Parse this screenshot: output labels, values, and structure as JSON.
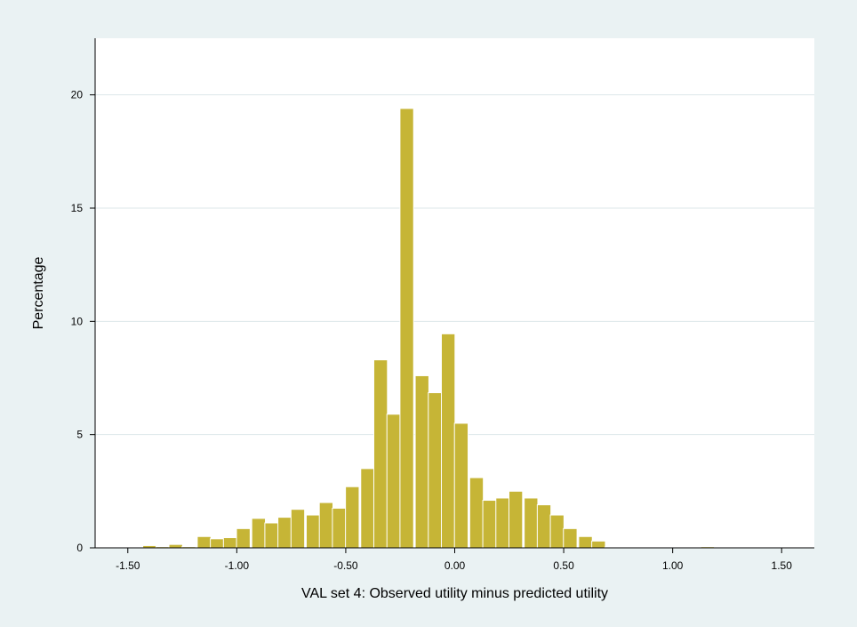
{
  "chart_data": {
    "type": "bar",
    "title": "",
    "xlabel": "VAL set 4: Observed utility minus predicted utility",
    "ylabel": "Percentage",
    "xlim": [
      -1.65,
      1.65
    ],
    "ylim": [
      0,
      22.5
    ],
    "bin_width": 0.0625,
    "x_ticks": [
      {
        "value": -1.5,
        "label": "-1.50"
      },
      {
        "value": -1.0,
        "label": "-1.00"
      },
      {
        "value": -0.5,
        "label": "-0.50"
      },
      {
        "value": 0.0,
        "label": "0.00"
      },
      {
        "value": 0.5,
        "label": "0.50"
      },
      {
        "value": 1.0,
        "label": "1.00"
      },
      {
        "value": 1.5,
        "label": "1.50"
      }
    ],
    "y_ticks": [
      {
        "value": 0,
        "label": "0"
      },
      {
        "value": 5,
        "label": "5"
      },
      {
        "value": 10,
        "label": "10"
      },
      {
        "value": 15,
        "label": "15"
      },
      {
        "value": 20,
        "label": "20"
      }
    ],
    "grid": true,
    "colors": {
      "bar": "#c6b536",
      "bar_edge": "#ffffff",
      "plot_background": "#ffffff",
      "outer_background": "#eaf2f3",
      "grid": "#dde7ea",
      "axis": "#000000"
    },
    "bins": [
      {
        "x": -1.4,
        "value": 0.1
      },
      {
        "x": -1.34,
        "value": 0.05
      },
      {
        "x": -1.28,
        "value": 0.15
      },
      {
        "x": -1.22,
        "value": 0.05
      },
      {
        "x": -1.15,
        "value": 0.5
      },
      {
        "x": -1.09,
        "value": 0.4
      },
      {
        "x": -1.03,
        "value": 0.45
      },
      {
        "x": -0.97,
        "value": 0.85
      },
      {
        "x": -0.9,
        "value": 1.3
      },
      {
        "x": -0.84,
        "value": 1.1
      },
      {
        "x": -0.78,
        "value": 1.35
      },
      {
        "x": -0.72,
        "value": 1.7
      },
      {
        "x": -0.65,
        "value": 1.45
      },
      {
        "x": -0.59,
        "value": 2.0
      },
      {
        "x": -0.53,
        "value": 1.75
      },
      {
        "x": -0.47,
        "value": 2.7
      },
      {
        "x": -0.4,
        "value": 3.5
      },
      {
        "x": -0.34,
        "value": 8.3
      },
      {
        "x": -0.28,
        "value": 5.9
      },
      {
        "x": -0.22,
        "value": 19.4
      },
      {
        "x": -0.15,
        "value": 7.6
      },
      {
        "x": -0.09,
        "value": 6.85
      },
      {
        "x": -0.03,
        "value": 9.45
      },
      {
        "x": 0.03,
        "value": 5.5
      },
      {
        "x": 0.1,
        "value": 3.1
      },
      {
        "x": 0.16,
        "value": 2.1
      },
      {
        "x": 0.22,
        "value": 2.2
      },
      {
        "x": 0.28,
        "value": 2.5
      },
      {
        "x": 0.35,
        "value": 2.2
      },
      {
        "x": 0.41,
        "value": 1.9
      },
      {
        "x": 0.47,
        "value": 1.45
      },
      {
        "x": 0.53,
        "value": 0.85
      },
      {
        "x": 0.6,
        "value": 0.5
      },
      {
        "x": 0.66,
        "value": 0.3
      },
      {
        "x": 0.72,
        "value": 0.03
      },
      {
        "x": 0.78,
        "value": 0.0
      },
      {
        "x": 0.85,
        "value": 0.02
      },
      {
        "x": 0.91,
        "value": 0.0
      },
      {
        "x": 0.97,
        "value": 0.02
      },
      {
        "x": 1.03,
        "value": 0.0
      },
      {
        "x": 1.1,
        "value": 0.0
      },
      {
        "x": 1.16,
        "value": 0.05
      },
      {
        "x": 1.22,
        "value": 0.0
      }
    ]
  }
}
